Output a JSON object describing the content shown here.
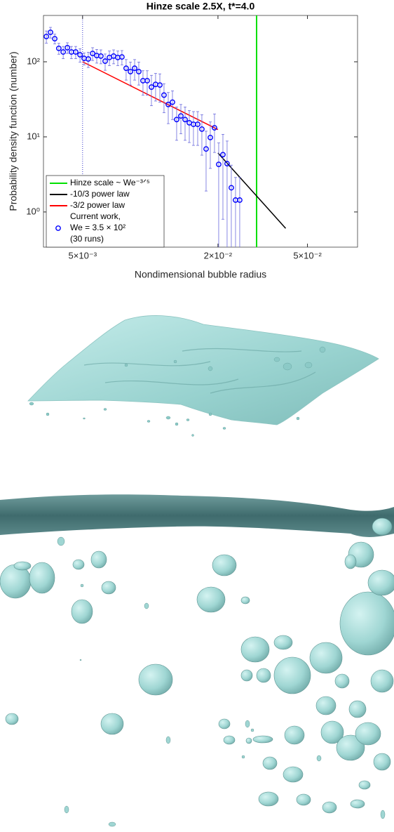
{
  "chart_data": {
    "type": "scatter",
    "title": "Hinze scale 2.5X, t*=4.0",
    "xlabel": "Nondimensional bubble radius",
    "ylabel": "Probability density function (number)",
    "xscale": "log",
    "yscale": "log",
    "xlim": [
      0.00335,
      0.0835
    ],
    "ylim": [
      0.34,
      414
    ],
    "xticks": [
      {
        "value": 0.005,
        "label": "5×10⁻³"
      },
      {
        "value": 0.02,
        "label": "2×10⁻²"
      },
      {
        "value": 0.05,
        "label": "5×10⁻²"
      }
    ],
    "yticks": [
      {
        "value": 1,
        "label": "10⁰"
      },
      {
        "value": 10,
        "label": "10¹"
      },
      {
        "value": 100,
        "label": "10²"
      }
    ],
    "grid": false,
    "legend": "lower-left",
    "marker_lines": [
      {
        "x": 0.005,
        "color": "#3333cc"
      }
    ],
    "series": [
      {
        "name": "Hinze scale ~ We⁻³ᐟ⁵",
        "type": "vline",
        "color": "#00e000",
        "x": [
          0.0297
        ]
      },
      {
        "name": "-10/3 power law",
        "type": "line",
        "color": "#000000",
        "x": [
          0.02,
          0.04
        ],
        "values": [
          6.1,
          0.605
        ]
      },
      {
        "name": "-3/2 power law",
        "type": "line",
        "color": "#ff0000",
        "x": [
          0.005,
          0.02
        ],
        "values": [
          100,
          12.5
        ]
      },
      {
        "name": "Current work,\nWe = 3.5 × 10²\n(30 runs)",
        "type": "errorbar",
        "color": "#0000ff",
        "x": [
          0.00345,
          0.0036,
          0.00376,
          0.00392,
          0.0041,
          0.00428,
          0.00446,
          0.00466,
          0.00487,
          0.00508,
          0.0053,
          0.00554,
          0.00578,
          0.00603,
          0.0063,
          0.00658,
          0.00687,
          0.00717,
          0.00748,
          0.00781,
          0.00816,
          0.00852,
          0.00889,
          0.00928,
          0.00969,
          0.01012,
          0.01056,
          0.01103,
          0.01151,
          0.01202,
          0.01255,
          0.0131,
          0.01368,
          0.01428,
          0.01491,
          0.01556,
          0.01625,
          0.01696,
          0.01771,
          0.01849,
          0.0193,
          0.02015,
          0.02104,
          0.02196,
          0.02293,
          0.02394,
          0.02499
        ],
        "values": [
          217,
          247,
          203,
          151,
          135,
          154,
          135,
          135,
          124,
          111,
          109,
          129,
          121,
          119,
          102,
          114,
          119,
          114,
          116,
          82,
          74,
          82,
          74,
          56,
          56,
          46,
          50,
          49,
          36,
          27,
          29,
          17,
          19,
          17,
          15.4,
          14.7,
          14.7,
          12.7,
          6.9,
          9.8,
          13.2,
          4.3,
          5.8,
          4.4,
          2.1,
          1.44,
          1.44
        ],
        "errors": [
          40,
          40,
          30,
          25,
          25,
          25,
          25,
          25,
          25,
          20,
          25,
          25,
          25,
          25,
          25,
          25,
          25,
          25,
          25,
          25,
          25,
          25,
          25,
          20,
          20,
          20,
          20,
          20,
          15,
          12,
          12,
          8,
          8,
          8,
          7,
          7,
          7,
          7,
          5,
          6,
          7,
          4,
          5,
          4.4,
          2.1,
          1.44,
          1.44
        ]
      }
    ]
  }
}
